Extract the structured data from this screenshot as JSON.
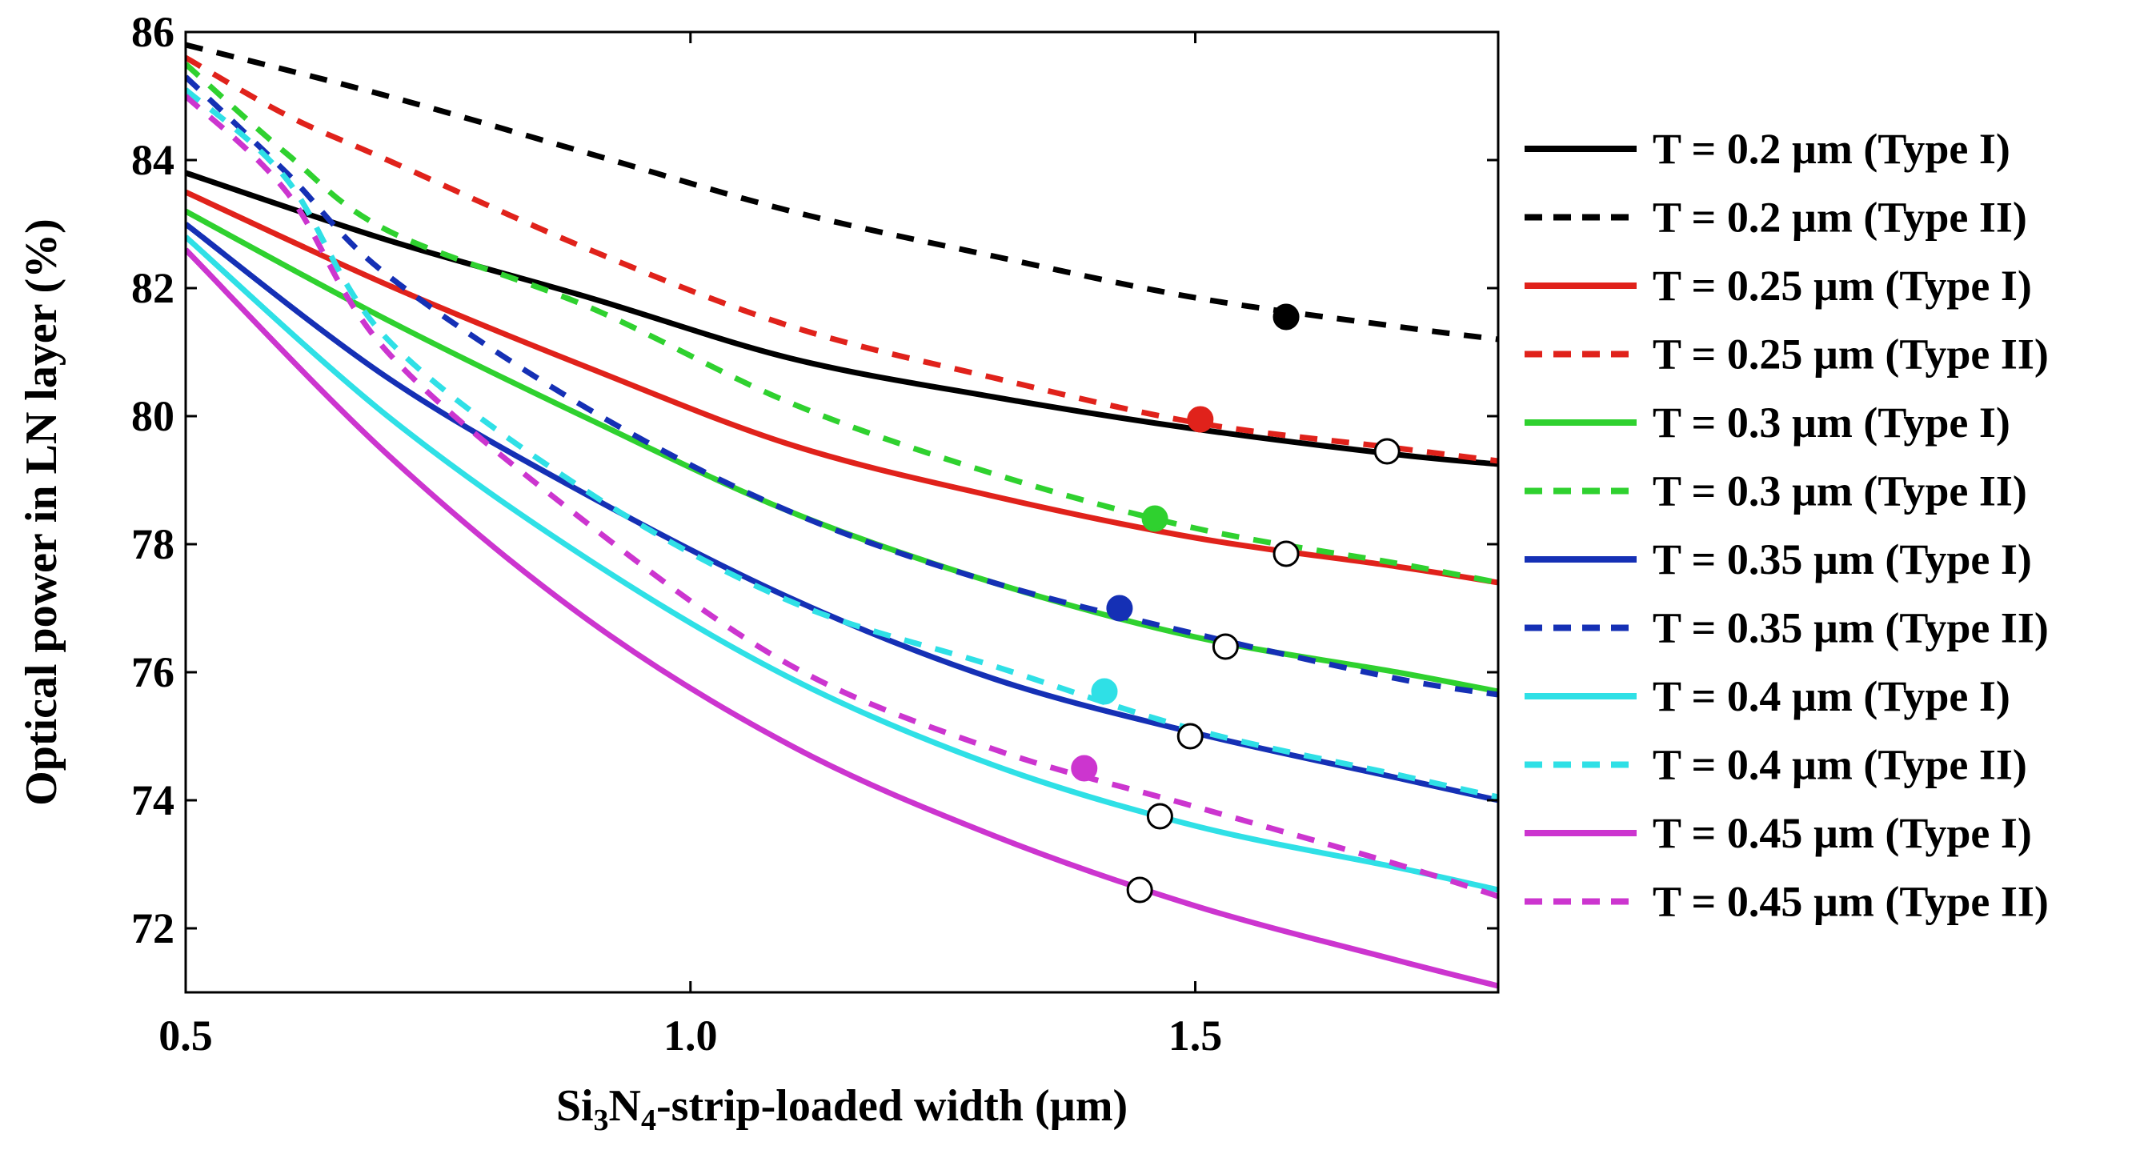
{
  "chart_data": {
    "type": "line",
    "title": "",
    "xlabel": {
      "pre": "Si",
      "sub1": "3",
      "mid": "N",
      "sub2": "4",
      "post": "-strip-loaded width (µm)"
    },
    "ylabel": "Optical power in LN layer (%)",
    "xlim": [
      0.5,
      1.8
    ],
    "ylim": [
      71,
      86
    ],
    "xticks": [
      0.5,
      1.0,
      1.5
    ],
    "xtick_labels": [
      "0.5",
      "1.0",
      "1.5"
    ],
    "yticks": [
      72,
      74,
      76,
      78,
      80,
      82,
      84,
      86
    ],
    "ytick_labels": [
      "72",
      "74",
      "76",
      "78",
      "80",
      "82",
      "84",
      "86"
    ],
    "legend_position": "right",
    "series": [
      {
        "name": "T = 0.2 µm (Type I)",
        "color": "#000000",
        "style": "solid",
        "x": [
          0.5,
          0.7,
          0.9,
          1.1,
          1.3,
          1.5,
          1.7,
          1.8
        ],
        "y": [
          83.8,
          82.75,
          81.85,
          80.9,
          80.3,
          79.8,
          79.4,
          79.25
        ],
        "marker": {
          "x": 1.69,
          "y": 79.45,
          "filled": false
        }
      },
      {
        "name": "T = 0.2 µm (Type II)",
        "color": "#000000",
        "style": "dashed",
        "x": [
          0.5,
          0.7,
          0.9,
          1.1,
          1.3,
          1.5,
          1.7,
          1.8
        ],
        "y": [
          85.8,
          85.0,
          84.1,
          83.2,
          82.5,
          81.85,
          81.4,
          81.2
        ],
        "marker": {
          "x": 1.59,
          "y": 81.55,
          "filled": true
        }
      },
      {
        "name": "T = 0.25 µm (Type I)",
        "color": "#e0221b",
        "style": "solid",
        "x": [
          0.5,
          0.7,
          0.9,
          1.1,
          1.3,
          1.5,
          1.7,
          1.8
        ],
        "y": [
          83.5,
          82.05,
          80.75,
          79.55,
          78.75,
          78.1,
          77.65,
          77.4
        ],
        "marker": {
          "x": 1.59,
          "y": 77.85,
          "filled": false
        }
      },
      {
        "name": "T = 0.25 µm (Type II)",
        "color": "#e0221b",
        "style": "dashed",
        "x": [
          0.5,
          0.6,
          0.7,
          0.9,
          1.1,
          1.3,
          1.5,
          1.7,
          1.8
        ],
        "y": [
          85.6,
          84.7,
          84.0,
          82.6,
          81.4,
          80.6,
          79.9,
          79.5,
          79.3
        ],
        "marker": {
          "x": 1.505,
          "y": 79.95,
          "filled": true
        }
      },
      {
        "name": "T = 0.3 µm (Type I)",
        "color": "#2fd12f",
        "style": "solid",
        "x": [
          0.5,
          0.7,
          0.9,
          1.1,
          1.3,
          1.5,
          1.7,
          1.8
        ],
        "y": [
          83.2,
          81.5,
          79.95,
          78.5,
          77.4,
          76.55,
          76.0,
          75.7
        ],
        "marker": {
          "x": 1.53,
          "y": 76.4,
          "filled": false
        }
      },
      {
        "name": "T = 0.3 µm (Type II)",
        "color": "#2fd12f",
        "style": "dashed",
        "x": [
          0.5,
          0.6,
          0.7,
          0.9,
          1.1,
          1.3,
          1.5,
          1.7,
          1.8
        ],
        "y": [
          85.5,
          84.1,
          82.9,
          81.7,
          80.2,
          79.1,
          78.25,
          77.7,
          77.4
        ],
        "marker": {
          "x": 1.46,
          "y": 78.4,
          "filled": true
        }
      },
      {
        "name": "T = 0.35 µm (Type I)",
        "color": "#1530b5",
        "style": "solid",
        "x": [
          0.5,
          0.7,
          0.9,
          1.1,
          1.3,
          1.5,
          1.7,
          1.8
        ],
        "y": [
          83.0,
          80.6,
          78.75,
          77.15,
          75.9,
          75.05,
          74.35,
          74.0
        ],
        "marker": {
          "x": 1.495,
          "y": 75.0,
          "filled": false
        }
      },
      {
        "name": "T = 0.35 µm (Type II)",
        "color": "#1530b5",
        "style": "dashed",
        "x": [
          0.5,
          0.6,
          0.7,
          0.9,
          1.1,
          1.3,
          1.5,
          1.7,
          1.8
        ],
        "y": [
          85.3,
          83.8,
          82.2,
          80.1,
          78.5,
          77.4,
          76.6,
          75.9,
          75.65
        ],
        "marker": {
          "x": 1.425,
          "y": 77.0,
          "filled": true
        }
      },
      {
        "name": "T = 0.4 µm (Type I)",
        "color": "#2fe0e6",
        "style": "solid",
        "x": [
          0.5,
          0.7,
          0.9,
          1.1,
          1.3,
          1.5,
          1.7,
          1.8
        ],
        "y": [
          82.8,
          80.0,
          77.75,
          75.9,
          74.55,
          73.6,
          72.95,
          72.6
        ],
        "marker": {
          "x": 1.465,
          "y": 73.75,
          "filled": false
        }
      },
      {
        "name": "T = 0.4 µm (Type II)",
        "color": "#2fe0e6",
        "style": "dashed",
        "x": [
          0.5,
          0.6,
          0.7,
          0.9,
          1.1,
          1.3,
          1.5,
          1.7,
          1.8
        ],
        "y": [
          85.1,
          83.7,
          81.2,
          78.8,
          77.1,
          76.1,
          75.1,
          74.4,
          74.05
        ],
        "marker": {
          "x": 1.41,
          "y": 75.7,
          "filled": true
        }
      },
      {
        "name": "T = 0.45 µm (Type I)",
        "color": "#cc35cf",
        "style": "solid",
        "x": [
          0.5,
          0.7,
          0.9,
          1.1,
          1.3,
          1.5,
          1.7,
          1.8
        ],
        "y": [
          82.6,
          79.4,
          76.8,
          74.85,
          73.45,
          72.35,
          71.5,
          71.1
        ],
        "marker": {
          "x": 1.445,
          "y": 72.6,
          "filled": false
        }
      },
      {
        "name": "T = 0.45 µm (Type II)",
        "color": "#cc35cf",
        "style": "dashed",
        "x": [
          0.5,
          0.6,
          0.7,
          0.9,
          1.1,
          1.3,
          1.5,
          1.7,
          1.8
        ],
        "y": [
          85.0,
          83.5,
          81.0,
          78.3,
          76.1,
          74.8,
          73.9,
          73.0,
          72.5
        ],
        "marker": {
          "x": 1.39,
          "y": 74.5,
          "filled": true
        }
      }
    ]
  }
}
